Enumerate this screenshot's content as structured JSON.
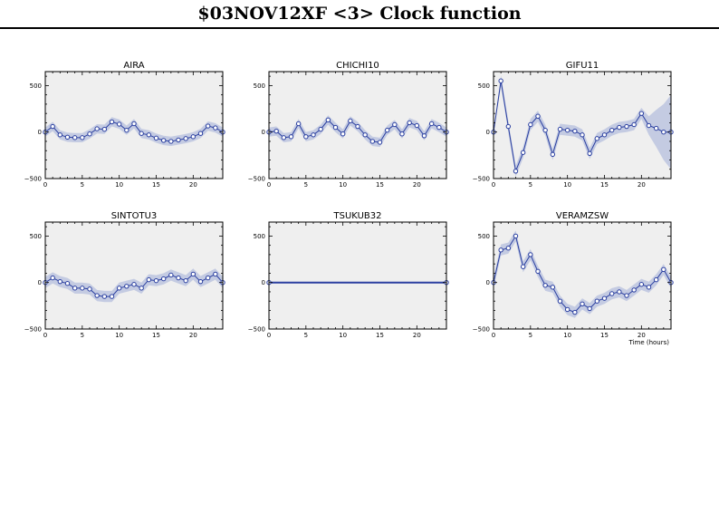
{
  "page": {
    "title": "$03NOV12XF <3>  Clock function"
  },
  "chart_data": [
    {
      "type": "line",
      "title": "AIRA",
      "xlabel": "",
      "xlim": [
        0,
        24
      ],
      "ylim": [
        -500,
        650
      ],
      "xticks": [
        0,
        5,
        10,
        15,
        20
      ],
      "yticks": [
        -500,
        0,
        500
      ],
      "x": [
        0,
        1,
        2,
        3,
        4,
        5,
        6,
        7,
        8,
        9,
        10,
        11,
        12,
        13,
        14,
        15,
        16,
        17,
        18,
        19,
        20,
        21,
        22,
        23,
        24
      ],
      "y": [
        0,
        60,
        -30,
        -55,
        -60,
        -60,
        -20,
        35,
        30,
        110,
        85,
        20,
        90,
        -15,
        -30,
        -65,
        -90,
        -100,
        -85,
        -70,
        -50,
        -15,
        65,
        45,
        0
      ],
      "uncertainty": 50,
      "color": "#2a3fa0",
      "band_color": "#c4cbe2",
      "panel_bg": "#efefef",
      "grid": false
    },
    {
      "type": "line",
      "title": "CHICHI10",
      "xlabel": "",
      "xlim": [
        0,
        24
      ],
      "ylim": [
        -500,
        650
      ],
      "xticks": [
        0,
        5,
        10,
        15,
        20
      ],
      "yticks": [
        -500,
        0,
        500
      ],
      "x": [
        0,
        1,
        2,
        3,
        4,
        5,
        6,
        7,
        8,
        9,
        10,
        11,
        12,
        13,
        14,
        15,
        16,
        17,
        18,
        19,
        20,
        21,
        22,
        23,
        24
      ],
      "y": [
        0,
        10,
        -60,
        -50,
        90,
        -50,
        -30,
        30,
        130,
        50,
        -20,
        120,
        60,
        -30,
        -100,
        -110,
        20,
        80,
        -20,
        100,
        70,
        -40,
        90,
        50,
        0
      ],
      "uncertainty": 50,
      "color": "#2a3fa0",
      "band_color": "#c4cbe2",
      "panel_bg": "#efefef",
      "grid": false
    },
    {
      "type": "line",
      "title": "GIFU11",
      "xlabel": "",
      "xlim": [
        0,
        24
      ],
      "ylim": [
        -500,
        650
      ],
      "xticks": [
        0,
        5,
        10,
        15,
        20
      ],
      "yticks": [
        -500,
        0,
        500
      ],
      "x": [
        0,
        1,
        2,
        3,
        4,
        5,
        6,
        7,
        8,
        9,
        10,
        11,
        12,
        13,
        14,
        15,
        16,
        17,
        18,
        19,
        20,
        21,
        22,
        23,
        24
      ],
      "y": [
        0,
        550,
        60,
        -420,
        -220,
        80,
        170,
        20,
        -240,
        30,
        20,
        10,
        -30,
        -230,
        -70,
        -30,
        20,
        50,
        60,
        80,
        200,
        70,
        40,
        0,
        0
      ],
      "uncertainty": [
        0,
        60,
        60,
        60,
        60,
        60,
        60,
        60,
        60,
        60,
        60,
        60,
        60,
        60,
        60,
        60,
        60,
        60,
        60,
        60,
        60,
        100,
        200,
        300,
        400
      ],
      "color": "#2a3fa0",
      "band_color": "#c4cbe2",
      "panel_bg": "#efefef",
      "grid": false
    },
    {
      "type": "line",
      "title": "SINTOTU3",
      "xlabel": "",
      "xlim": [
        0,
        24
      ],
      "ylim": [
        -500,
        650
      ],
      "xticks": [
        0,
        5,
        10,
        15,
        20
      ],
      "yticks": [
        -500,
        0,
        500
      ],
      "x": [
        0,
        1,
        2,
        3,
        4,
        5,
        6,
        7,
        8,
        9,
        10,
        11,
        12,
        13,
        14,
        15,
        16,
        17,
        18,
        19,
        20,
        21,
        22,
        23,
        24
      ],
      "y": [
        0,
        50,
        10,
        -10,
        -60,
        -60,
        -70,
        -140,
        -150,
        -150,
        -60,
        -40,
        -20,
        -60,
        30,
        20,
        40,
        80,
        50,
        20,
        90,
        10,
        50,
        90,
        0
      ],
      "uncertainty": 60,
      "color": "#2a3fa0",
      "band_color": "#c4cbe2",
      "panel_bg": "#efefef",
      "grid": false
    },
    {
      "type": "line",
      "title": "TSUKUB32",
      "xlabel": "",
      "xlim": [
        0,
        24
      ],
      "ylim": [
        -500,
        650
      ],
      "xticks": [
        0,
        5,
        10,
        15,
        20
      ],
      "yticks": [
        -500,
        0,
        500
      ],
      "x": [
        0,
        24
      ],
      "y": [
        0,
        0
      ],
      "uncertainty": 0,
      "color": "#2a3fa0",
      "band_color": "#c4cbe2",
      "panel_bg": "#efefef",
      "grid": false
    },
    {
      "type": "line",
      "title": "VERAMZSW",
      "xlabel": "Time (hours)",
      "xlim": [
        0,
        24
      ],
      "ylim": [
        -500,
        650
      ],
      "xticks": [
        0,
        5,
        10,
        15,
        20
      ],
      "yticks": [
        -500,
        0,
        500
      ],
      "x": [
        0,
        1,
        2,
        3,
        4,
        5,
        6,
        7,
        8,
        9,
        10,
        11,
        12,
        13,
        14,
        15,
        16,
        17,
        18,
        19,
        20,
        21,
        22,
        23,
        24
      ],
      "y": [
        0,
        350,
        370,
        500,
        170,
        300,
        120,
        -30,
        -50,
        -200,
        -290,
        -320,
        -230,
        -280,
        -200,
        -170,
        -120,
        -100,
        -140,
        -80,
        -20,
        -50,
        30,
        140,
        0
      ],
      "uncertainty": 60,
      "color": "#2a3fa0",
      "band_color": "#c4cbe2",
      "panel_bg": "#efefef",
      "grid": false
    }
  ]
}
